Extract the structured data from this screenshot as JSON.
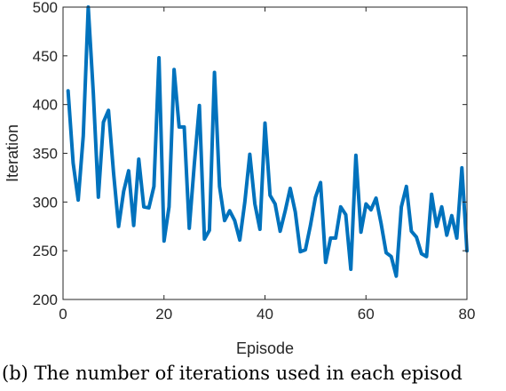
{
  "colors": {
    "line": "#0072BD",
    "axis": "#262626",
    "background": "#ffffff"
  },
  "caption": "(b)  The  number  of  iterations  used  in  each  episod",
  "chart_data": {
    "type": "line",
    "xlabel": "Episode",
    "ylabel": "Iteration",
    "xlim": [
      0,
      80
    ],
    "ylim": [
      200,
      500
    ],
    "xticks": [
      0,
      20,
      40,
      60,
      80
    ],
    "yticks": [
      200,
      250,
      300,
      350,
      400,
      450,
      500
    ],
    "grid": false,
    "series": [
      {
        "x": [
          1,
          2,
          3,
          4,
          5,
          6,
          7,
          8,
          9,
          10,
          11,
          12,
          13,
          14,
          15,
          16,
          17,
          18,
          19,
          20,
          21,
          22,
          23,
          24,
          25,
          26,
          27,
          28,
          29,
          30,
          31,
          32,
          33,
          34,
          35,
          36,
          37,
          38,
          39,
          40,
          41,
          42,
          43,
          44,
          45,
          46,
          47,
          48,
          49,
          50,
          51,
          52,
          53,
          54,
          55,
          56,
          57,
          58,
          59,
          60,
          61,
          62,
          63,
          64,
          65,
          66,
          67,
          68,
          69,
          70,
          71,
          72,
          73,
          74,
          75,
          76,
          77,
          78,
          79,
          80
        ],
        "y": [
          414,
          340,
          302,
          368,
          500,
          412,
          305,
          382,
          394,
          330,
          275,
          311,
          332,
          276,
          344,
          295,
          294,
          316,
          448,
          260,
          295,
          436,
          377,
          377,
          273,
          339,
          399,
          262,
          271,
          433,
          316,
          281,
          291,
          281,
          261,
          300,
          349,
          298,
          272,
          381,
          307,
          298,
          270,
          291,
          314,
          290,
          249,
          251,
          276,
          305,
          320,
          238,
          263,
          263,
          295,
          287,
          231,
          348,
          269,
          298,
          292,
          304,
          278,
          248,
          244,
          224,
          295,
          316,
          270,
          264,
          247,
          244,
          308,
          275,
          295,
          266,
          286,
          263,
          335,
          250
        ]
      }
    ]
  }
}
